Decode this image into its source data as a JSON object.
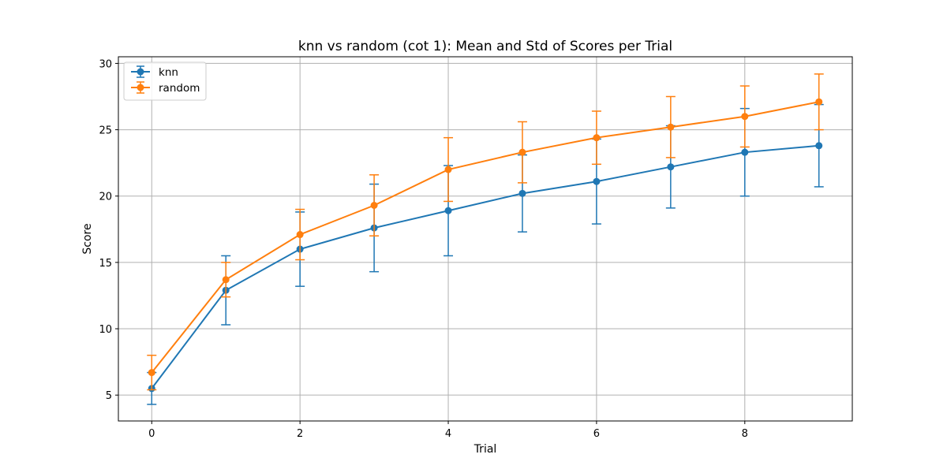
{
  "chart_data": {
    "type": "line",
    "title": "knn vs random (cot 1): Mean and Std of Scores per Trial",
    "xlabel": "Trial",
    "ylabel": "Score",
    "x": [
      0,
      1,
      2,
      3,
      4,
      5,
      6,
      7,
      8,
      9
    ],
    "xlim": [
      -0.45,
      9.45
    ],
    "ylim": [
      3.05,
      30.5
    ],
    "xticks": [
      0,
      2,
      4,
      6,
      8
    ],
    "yticks": [
      5,
      10,
      15,
      20,
      25,
      30
    ],
    "grid": true,
    "legend_position": "top-left",
    "series": [
      {
        "name": "knn",
        "color": "#1f77b4",
        "values": [
          5.5,
          12.9,
          16.0,
          17.6,
          18.9,
          20.2,
          21.1,
          22.2,
          23.3,
          23.8
        ],
        "std": [
          1.2,
          2.6,
          2.8,
          3.3,
          3.4,
          2.9,
          3.2,
          3.1,
          3.3,
          3.1
        ]
      },
      {
        "name": "random",
        "color": "#ff7f0e",
        "values": [
          6.7,
          13.7,
          17.1,
          19.3,
          22.0,
          23.3,
          24.4,
          25.2,
          26.0,
          27.1
        ],
        "std": [
          1.3,
          1.3,
          1.9,
          2.3,
          2.4,
          2.3,
          2.0,
          2.3,
          2.3,
          2.1
        ]
      }
    ]
  }
}
